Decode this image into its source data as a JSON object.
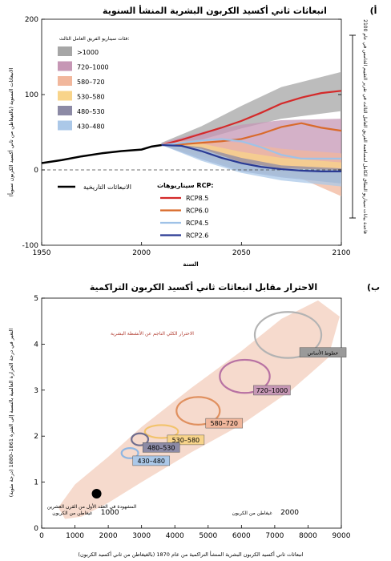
{
  "chart_data": [
    {
      "panel": "(أ",
      "type": "area",
      "title": "انبعاثات ثاني أكسيد الكربون البشرية المنشأ السنوية",
      "xlabel": "السنة",
      "ylabel": "(الانبعاثات السنوية (بالغيغاطن من ثاني أكسيد الكربون سنوياً",
      "xlim": [
        1950,
        2100
      ],
      "ylim": [
        -100,
        200
      ],
      "xticks": [
        "1950",
        "2000",
        "2050",
        "2100"
      ],
      "yticks": [
        "-100",
        "0",
        "100",
        "200"
      ],
      "bands_legend_title": "فئات سيناريو الفريق العامل الثالث:",
      "bands": [
        {
          "name": ">1000",
          "color": "#a6a6a6",
          "upper": [
            [
              2010,
              36
            ],
            [
              2030,
              58
            ],
            [
              2050,
              85
            ],
            [
              2070,
              110
            ],
            [
              2100,
              130
            ]
          ],
          "lower": [
            [
              2010,
              33
            ],
            [
              2030,
              40
            ],
            [
              2050,
              55
            ],
            [
              2070,
              68
            ],
            [
              2100,
              78
            ]
          ]
        },
        {
          "name": "720–1000",
          "color": "#c697b5",
          "upper": [
            [
              2010,
              36
            ],
            [
              2030,
              50
            ],
            [
              2050,
              60
            ],
            [
              2070,
              66
            ],
            [
              2100,
              68
            ]
          ],
          "lower": [
            [
              2010,
              33
            ],
            [
              2030,
              22
            ],
            [
              2050,
              10
            ],
            [
              2070,
              -2
            ],
            [
              2100,
              -12
            ]
          ]
        },
        {
          "name": "580–720",
          "color": "#f1b79c",
          "upper": [
            [
              2010,
              36
            ],
            [
              2030,
              40
            ],
            [
              2050,
              36
            ],
            [
              2070,
              28
            ],
            [
              2100,
              22
            ]
          ],
          "lower": [
            [
              2010,
              33
            ],
            [
              2030,
              18
            ],
            [
              2050,
              8
            ],
            [
              2070,
              0
            ],
            [
              2100,
              -35
            ]
          ]
        },
        {
          "name": "530–580",
          "color": "#f8d48a",
          "upper": [
            [
              2010,
              36
            ],
            [
              2030,
              35
            ],
            [
              2050,
              24
            ],
            [
              2070,
              16
            ],
            [
              2100,
              10
            ]
          ],
          "lower": [
            [
              2010,
              33
            ],
            [
              2030,
              18
            ],
            [
              2050,
              0
            ],
            [
              2070,
              -8
            ],
            [
              2100,
              -18
            ]
          ]
        },
        {
          "name": "480–530",
          "color": "#8c8aa5",
          "upper": [
            [
              2010,
              36
            ],
            [
              2030,
              30
            ],
            [
              2050,
              16
            ],
            [
              2070,
              6
            ],
            [
              2100,
              2
            ]
          ],
          "lower": [
            [
              2010,
              33
            ],
            [
              2030,
              14
            ],
            [
              2050,
              -2
            ],
            [
              2070,
              -10
            ],
            [
              2100,
              -18
            ]
          ]
        },
        {
          "name": "430–480",
          "color": "#abc8e8",
          "upper": [
            [
              2010,
              36
            ],
            [
              2030,
              28
            ],
            [
              2050,
              10
            ],
            [
              2070,
              2
            ],
            [
              2100,
              0
            ]
          ],
          "lower": [
            [
              2010,
              33
            ],
            [
              2030,
              12
            ],
            [
              2050,
              -4
            ],
            [
              2070,
              -14
            ],
            [
              2100,
              -22
            ]
          ]
        }
      ],
      "historical": {
        "name": "الانبعاثات التاريخية",
        "color": "#000000",
        "x": [
          1950,
          1960,
          1970,
          1980,
          1990,
          2000,
          2005,
          2010
        ],
        "y": [
          9,
          13,
          18,
          22,
          25,
          27,
          31,
          33
        ]
      },
      "rcp_legend_title": "سيناريوهات RCP:",
      "series": [
        {
          "name": "RCP8.5",
          "color": "#d42a2a",
          "x": [
            2010,
            2020,
            2030,
            2040,
            2050,
            2060,
            2070,
            2080,
            2090,
            2100
          ],
          "y": [
            33,
            40,
            48,
            56,
            65,
            76,
            88,
            96,
            102,
            105
          ]
        },
        {
          "name": "RCP6.0",
          "color": "#d96a2b",
          "x": [
            2010,
            2020,
            2030,
            2040,
            2050,
            2060,
            2070,
            2080,
            2090,
            2100
          ],
          "y": [
            33,
            34,
            36,
            38,
            41,
            48,
            57,
            62,
            56,
            52
          ]
        },
        {
          "name": "RCP4.5",
          "color": "#9fc2e7",
          "x": [
            2010,
            2020,
            2030,
            2040,
            2050,
            2060,
            2070,
            2080,
            2090,
            2100
          ],
          "y": [
            33,
            36,
            39,
            41,
            38,
            30,
            20,
            15,
            15,
            15
          ]
        },
        {
          "name": "RCP2.6",
          "color": "#2a3a94",
          "x": [
            2010,
            2020,
            2030,
            2040,
            2050,
            2060,
            2070,
            2080,
            2090,
            2100
          ],
          "y": [
            33,
            32,
            25,
            16,
            9,
            4,
            1,
            -1,
            -2,
            -2
          ]
        }
      ],
      "side_bracket_label": "قاعدة بيانات سيناريو النطاق الكامل لمساهمة الفريق العامل الثالث في تقرير التقييم الخامس في عام 2100"
    },
    {
      "panel": "(ب",
      "type": "scatter",
      "title": "الاحترار مقابل انبعاثات ثاني أكسيد الكربون التراكمية",
      "xlabel": "انبعاثات ثاني أكسيد الكربون البشرية المنشأ التراكمية من عام 1870 (بالغيغاطن من ثاني أكسيد الكربون)",
      "ylabel": "التغير في درجة الحرارة العالمية بالنسبة إلى الفترة 1861–1880 (درجة مئوية)",
      "xlim": [
        0,
        9000
      ],
      "ylim": [
        0,
        5
      ],
      "xticks": [
        "0",
        "1000",
        "2000",
        "3000",
        "4000",
        "5000",
        "6000",
        "7000",
        "8000",
        "9000"
      ],
      "yticks": [
        "0",
        "1",
        "2",
        "3",
        "4",
        "5"
      ],
      "plume_label": "الاحترار الكلي الناجم عن الأنشطة البشرية",
      "observed": {
        "label": "المشهودة في العقد الأول من القرن العشرين",
        "x": 1650,
        "y": 0.75
      },
      "ellipses": [
        {
          "name": "خطوط الأساس",
          "color": "#b3b3b3",
          "box": "#9a9a9a",
          "cx": 7400,
          "cy": 4.2,
          "rx": 1000,
          "ry": 0.5
        },
        {
          "name": "720–1000",
          "color": "#b872a3",
          "box": "#c697b5",
          "cx": 6100,
          "cy": 3.3,
          "rx": 750,
          "ry": 0.36
        },
        {
          "name": "580–720",
          "color": "#e0905f",
          "box": "#f1b79c",
          "cx": 4700,
          "cy": 2.55,
          "rx": 650,
          "ry": 0.3
        },
        {
          "name": "530–580",
          "color": "#f2c36b",
          "box": "#f8d48a",
          "cx": 3600,
          "cy": 2.1,
          "rx": 500,
          "ry": 0.14
        },
        {
          "name": "480–530",
          "color": "#6f6d8e",
          "box": "#8c8aa5",
          "cx": 2950,
          "cy": 1.93,
          "rx": 250,
          "ry": 0.13
        },
        {
          "name": "430–480",
          "color": "#8fb6e2",
          "box": "#abc8e8",
          "cx": 2650,
          "cy": 1.63,
          "rx": 250,
          "ry": 0.11
        }
      ],
      "scale_labels": [
        {
          "text": "1000",
          "sub": "غيغاطن من الكربون",
          "x": 2050
        },
        {
          "text": "2000",
          "sub": "غيغاطن من الكربون",
          "x": 7450
        }
      ]
    }
  ]
}
